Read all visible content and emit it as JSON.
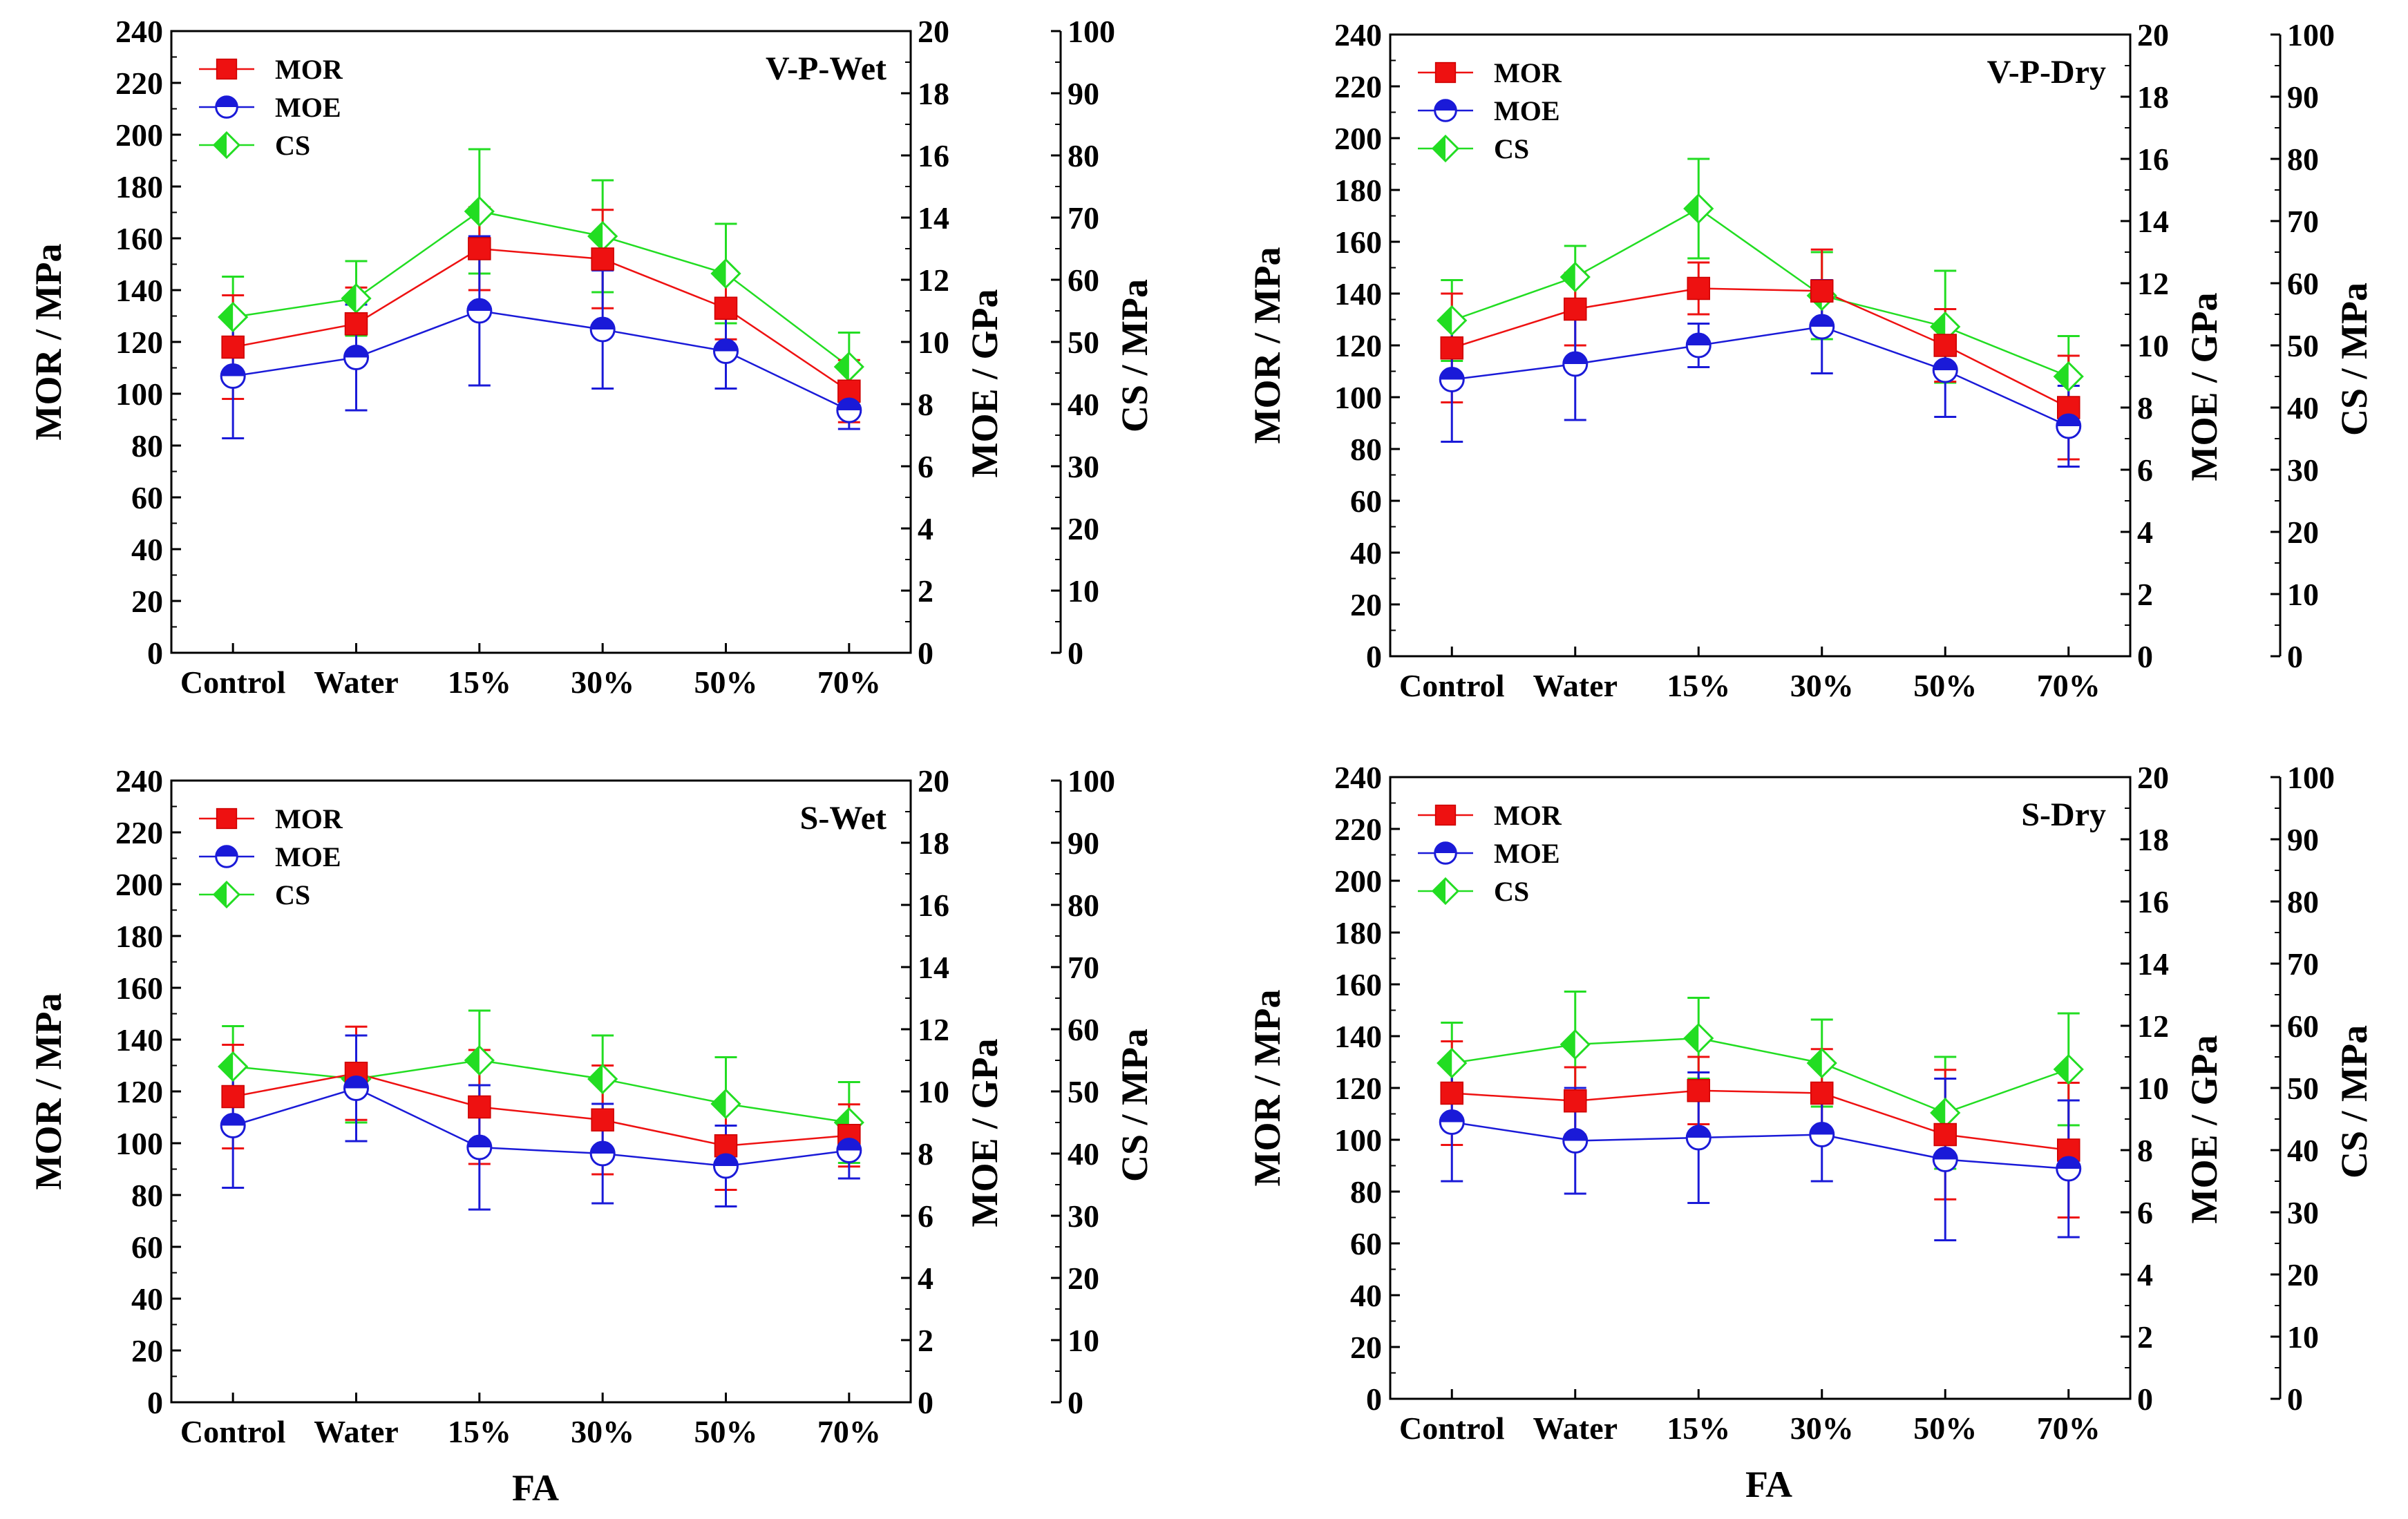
{
  "figure": {
    "xlabel": "FA",
    "categories": [
      "Control",
      "Water",
      "15%",
      "30%",
      "50%",
      "70%"
    ],
    "series_names": {
      "mor": "MOR",
      "moe": "MOE",
      "cs": "CS"
    },
    "colors": {
      "mor": "#ee1111",
      "moe": "#1a1ad8",
      "cs": "#22dd22"
    }
  },
  "chart_data": [
    {
      "type": "line",
      "title": "V-P-Wet",
      "categories": [
        "Control",
        "Water",
        "15%",
        "30%",
        "50%",
        "70%"
      ],
      "xlabel": "FA",
      "axes": {
        "mor": {
          "label": "MOR / MPa",
          "range": [
            0,
            240
          ],
          "ticks": [
            0,
            20,
            40,
            60,
            80,
            100,
            120,
            140,
            160,
            180,
            200,
            220,
            240
          ]
        },
        "moe": {
          "label": "MOE / GPa",
          "range": [
            0,
            20
          ],
          "ticks": [
            0,
            2,
            4,
            6,
            8,
            10,
            12,
            14,
            16,
            18,
            20
          ]
        },
        "cs": {
          "label": "CS / MPa",
          "range": [
            0,
            100
          ],
          "ticks": [
            0,
            10,
            20,
            30,
            40,
            50,
            60,
            70,
            80,
            90,
            100
          ]
        }
      },
      "series": [
        {
          "name": "MOR",
          "axis": "mor",
          "values": [
            118,
            127,
            156,
            152,
            133,
            101
          ],
          "errors": [
            20,
            14,
            16,
            19,
            12,
            12
          ]
        },
        {
          "name": "MOE",
          "axis": "moe",
          "values": [
            8.9,
            9.5,
            11.0,
            10.4,
            9.7,
            7.8
          ],
          "errors": [
            2.0,
            1.7,
            2.4,
            1.9,
            1.2,
            0.6
          ]
        },
        {
          "name": "CS",
          "axis": "cs",
          "values": [
            54,
            57,
            71,
            67,
            61,
            46
          ],
          "errors": [
            6.5,
            6,
            10,
            9,
            8,
            5.5
          ]
        }
      ]
    },
    {
      "type": "line",
      "title": "V-P-Dry",
      "categories": [
        "Control",
        "Water",
        "15%",
        "30%",
        "50%",
        "70%"
      ],
      "xlabel": "FA",
      "axes": {
        "mor": {
          "label": "MOR / MPa",
          "range": [
            0,
            240
          ],
          "ticks": [
            0,
            20,
            40,
            60,
            80,
            100,
            120,
            140,
            160,
            180,
            200,
            220,
            240
          ]
        },
        "moe": {
          "label": "MOE / GPa",
          "range": [
            0,
            20
          ],
          "ticks": [
            0,
            2,
            4,
            6,
            8,
            10,
            12,
            14,
            16,
            18,
            20
          ]
        },
        "cs": {
          "label": "CS / MPa",
          "range": [
            0,
            100
          ],
          "ticks": [
            0,
            10,
            20,
            30,
            40,
            50,
            60,
            70,
            80,
            90,
            100
          ]
        }
      },
      "series": [
        {
          "name": "MOR",
          "axis": "mor",
          "values": [
            119,
            134,
            142,
            141,
            120,
            96
          ],
          "errors": [
            21,
            14,
            10,
            16,
            14,
            20
          ]
        },
        {
          "name": "MOE",
          "axis": "moe",
          "values": [
            8.9,
            9.4,
            10.0,
            10.6,
            9.2,
            7.4
          ],
          "errors": [
            2.0,
            1.8,
            0.7,
            1.5,
            1.5,
            1.3
          ]
        },
        {
          "name": "CS",
          "axis": "cs",
          "values": [
            54,
            61,
            72,
            58,
            53,
            45
          ],
          "errors": [
            6.5,
            5,
            8,
            7,
            9,
            6.5
          ]
        }
      ]
    },
    {
      "type": "line",
      "title": "S-Wet",
      "categories": [
        "Control",
        "Water",
        "15%",
        "30%",
        "50%",
        "70%"
      ],
      "xlabel": "FA",
      "axes": {
        "mor": {
          "label": "MOR / MPa",
          "range": [
            0,
            240
          ],
          "ticks": [
            0,
            20,
            40,
            60,
            80,
            100,
            120,
            140,
            160,
            180,
            200,
            220,
            240
          ]
        },
        "moe": {
          "label": "MOE / GPa",
          "range": [
            0,
            20
          ],
          "ticks": [
            0,
            2,
            4,
            6,
            8,
            10,
            12,
            14,
            16,
            18,
            20
          ]
        },
        "cs": {
          "label": "CS / MPa",
          "range": [
            0,
            100
          ],
          "ticks": [
            0,
            10,
            20,
            30,
            40,
            50,
            60,
            70,
            80,
            90,
            100
          ]
        }
      },
      "series": [
        {
          "name": "MOR",
          "axis": "mor",
          "values": [
            118,
            127,
            114,
            109,
            99,
            103
          ],
          "errors": [
            20,
            18,
            22,
            21,
            17,
            12
          ]
        },
        {
          "name": "MOE",
          "axis": "moe",
          "values": [
            8.9,
            10.1,
            8.2,
            8.0,
            7.6,
            8.1
          ],
          "errors": [
            2.0,
            1.7,
            2.0,
            1.6,
            1.3,
            0.9
          ]
        },
        {
          "name": "CS",
          "axis": "cs",
          "values": [
            54,
            52,
            55,
            52,
            48,
            45
          ],
          "errors": [
            6.5,
            7,
            8,
            7,
            7.5,
            6.5
          ]
        }
      ]
    },
    {
      "type": "line",
      "title": "S-Dry",
      "categories": [
        "Control",
        "Water",
        "15%",
        "30%",
        "50%",
        "70%"
      ],
      "xlabel": "FA",
      "axes": {
        "mor": {
          "label": "MOR / MPa",
          "range": [
            0,
            240
          ],
          "ticks": [
            0,
            20,
            40,
            60,
            80,
            100,
            120,
            140,
            160,
            180,
            200,
            220,
            240
          ]
        },
        "moe": {
          "label": "MOE / GPa",
          "range": [
            0,
            20
          ],
          "ticks": [
            0,
            2,
            4,
            6,
            8,
            10,
            12,
            14,
            16,
            18,
            20
          ]
        },
        "cs": {
          "label": "CS / MPa",
          "range": [
            0,
            100
          ],
          "ticks": [
            0,
            10,
            20,
            30,
            40,
            50,
            60,
            70,
            80,
            90,
            100
          ]
        }
      },
      "series": [
        {
          "name": "MOR",
          "axis": "mor",
          "values": [
            118,
            115,
            119,
            118,
            102,
            96
          ],
          "errors": [
            20,
            13,
            13,
            17,
            25,
            26
          ]
        },
        {
          "name": "MOE",
          "axis": "moe",
          "values": [
            8.9,
            8.3,
            8.4,
            8.5,
            7.7,
            7.4
          ],
          "errors": [
            1.9,
            1.7,
            2.1,
            1.5,
            2.6,
            2.2
          ]
        },
        {
          "name": "CS",
          "axis": "cs",
          "values": [
            54,
            57,
            58,
            54,
            46,
            53
          ],
          "errors": [
            6.5,
            8.5,
            6.5,
            7,
            9,
            9
          ]
        }
      ]
    }
  ]
}
